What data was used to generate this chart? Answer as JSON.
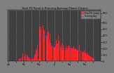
{
  "title": "Total PV Panel & Running Average Power Output",
  "bg_color": "#808080",
  "plot_bg": "#404040",
  "bar_color": "#ff2020",
  "avg_color": "#4040ff",
  "grid_color": "#ffffff",
  "legend_labels": [
    "Total PV Output",
    "Running Avg"
  ],
  "yticks": [
    0,
    100,
    200,
    300,
    400,
    500,
    600,
    750
  ],
  "ymax": 800,
  "num_points": 365,
  "seed": 17
}
